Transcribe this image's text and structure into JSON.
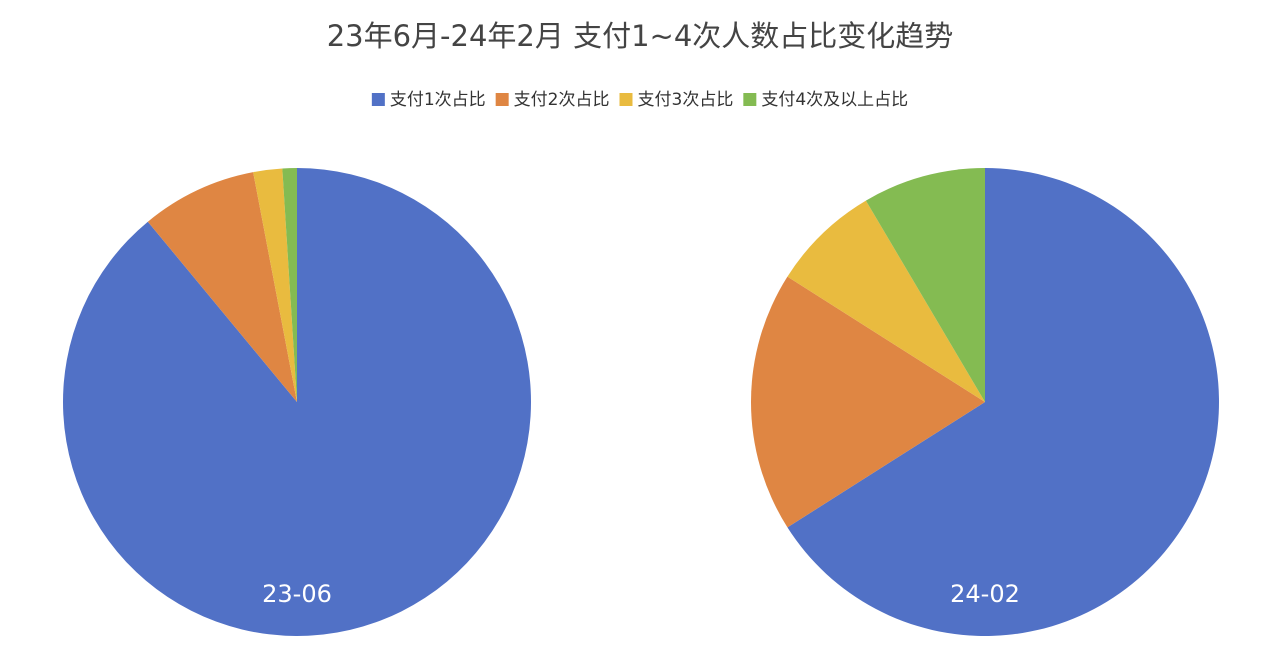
{
  "chart_data": {
    "type": "pie",
    "title": "23年6月-24年2月 支付1~4次人数占比变化趋势",
    "categories": [
      "支付1次占比",
      "支付2次占比",
      "支付3次占比",
      "支付4次及以上占比"
    ],
    "colors": [
      "#5171c6",
      "#df8643",
      "#e9bb3f",
      "#84bb52"
    ],
    "pies": [
      {
        "label": "23-06",
        "values": [
          89,
          8,
          2,
          1
        ]
      },
      {
        "label": "24-02",
        "values": [
          66,
          18,
          7.5,
          8.5
        ]
      }
    ]
  }
}
